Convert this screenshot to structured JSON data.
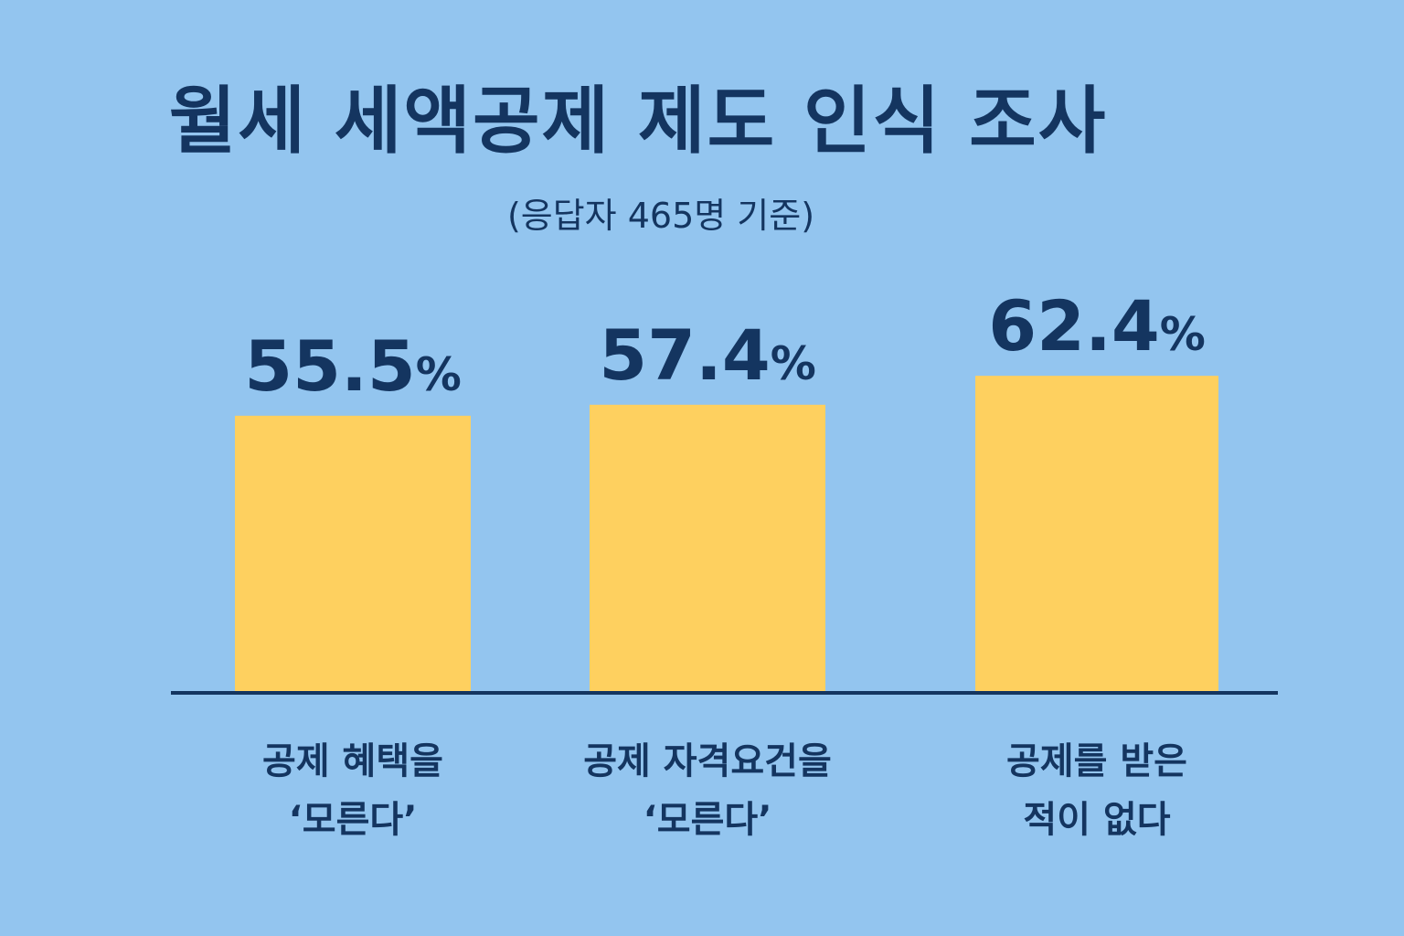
{
  "chart_data": {
    "type": "bar",
    "title": "월세 세액공제 제도 인식 조사",
    "subtitle": "(응답자 465명 기준)",
    "categories": [
      [
        "공제 혜택을",
        "‘모른다’"
      ],
      [
        "공제 자격요건을",
        "‘모른다’"
      ],
      [
        "공제를 받은",
        "적이 없다"
      ]
    ],
    "values": [
      55.5,
      57.4,
      62.4
    ],
    "value_labels": [
      "55.5",
      "57.4",
      "62.4"
    ],
    "unit": "%",
    "colors": {
      "background": "#93c5ef",
      "bar": "#fed05f",
      "text": "#143560"
    },
    "grid": false,
    "legend": "none"
  }
}
